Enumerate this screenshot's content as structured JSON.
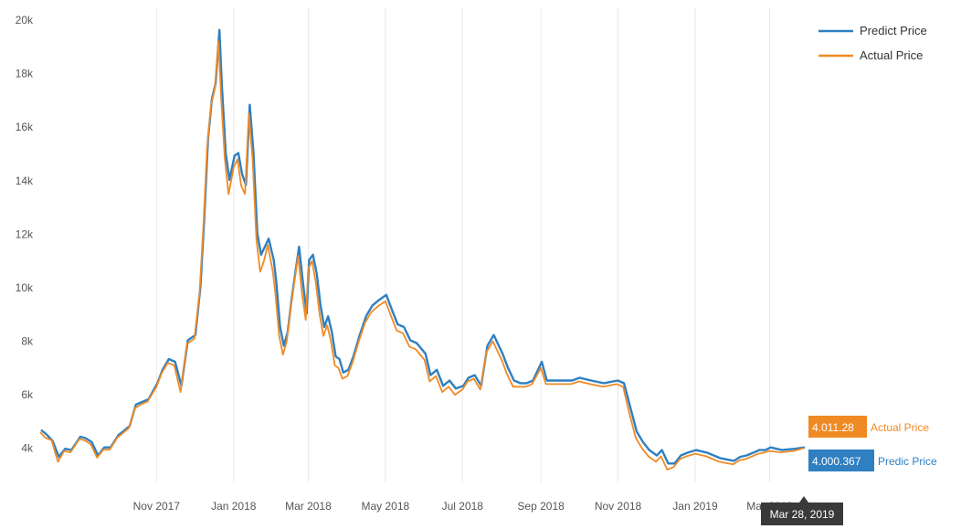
{
  "chart_data": {
    "type": "line",
    "x_type": "date",
    "ylim": [
      3000,
      20000
    ],
    "y_ticks": [
      4000,
      6000,
      8000,
      10000,
      12000,
      14000,
      16000,
      18000,
      20000
    ],
    "y_tick_labels": [
      "4k",
      "6k",
      "8k",
      "10k",
      "12k",
      "14k",
      "16k",
      "18k",
      "20k"
    ],
    "x_range": [
      "2017-08-01",
      "2019-03-28"
    ],
    "x_ticks": [
      "2017-11-01",
      "2018-01-01",
      "2018-03-01",
      "2018-05-01",
      "2018-07-01",
      "2018-09-01",
      "2018-11-01",
      "2019-01-01",
      "2019-03-01"
    ],
    "x_tick_labels": [
      "Nov 2017",
      "Jan 2018",
      "Mar 2018",
      "May 2018",
      "Jul 2018",
      "Sep 2018",
      "Nov 2018",
      "Jan 2019",
      "Mar 2019"
    ],
    "grid": "vertical",
    "legend_position": "top-right",
    "series": [
      {
        "name": "Predict Price",
        "color": "#2f7fc1",
        "x": [
          "2017-08-01",
          "2017-08-05",
          "2017-08-10",
          "2017-08-15",
          "2017-08-20",
          "2017-08-25",
          "2017-09-01",
          "2017-09-05",
          "2017-09-10",
          "2017-09-15",
          "2017-09-20",
          "2017-09-25",
          "2017-10-01",
          "2017-10-05",
          "2017-10-10",
          "2017-10-15",
          "2017-10-20",
          "2017-10-25",
          "2017-11-01",
          "2017-11-05",
          "2017-11-10",
          "2017-11-15",
          "2017-11-20",
          "2017-11-25",
          "2017-12-01",
          "2017-12-05",
          "2017-12-08",
          "2017-12-11",
          "2017-12-14",
          "2017-12-17",
          "2017-12-20",
          "2017-12-22",
          "2017-12-25",
          "2017-12-28",
          "2018-01-01",
          "2018-01-04",
          "2018-01-07",
          "2018-01-10",
          "2018-01-13",
          "2018-01-16",
          "2018-01-19",
          "2018-01-22",
          "2018-01-25",
          "2018-01-28",
          "2018-02-01",
          "2018-02-03",
          "2018-02-06",
          "2018-02-09",
          "2018-02-12",
          "2018-02-15",
          "2018-02-18",
          "2018-02-21",
          "2018-02-24",
          "2018-02-27",
          "2018-03-01",
          "2018-03-04",
          "2018-03-07",
          "2018-03-10",
          "2018-03-13",
          "2018-03-16",
          "2018-03-19",
          "2018-03-22",
          "2018-03-25",
          "2018-03-28",
          "2018-04-01",
          "2018-04-05",
          "2018-04-10",
          "2018-04-15",
          "2018-04-20",
          "2018-04-25",
          "2018-05-01",
          "2018-05-05",
          "2018-05-10",
          "2018-05-15",
          "2018-05-20",
          "2018-05-25",
          "2018-06-01",
          "2018-06-05",
          "2018-06-10",
          "2018-06-15",
          "2018-06-20",
          "2018-06-25",
          "2018-07-01",
          "2018-07-05",
          "2018-07-10",
          "2018-07-15",
          "2018-07-20",
          "2018-07-25",
          "2018-08-01",
          "2018-08-05",
          "2018-08-10",
          "2018-08-15",
          "2018-08-20",
          "2018-08-25",
          "2018-09-01",
          "2018-09-05",
          "2018-09-10",
          "2018-09-15",
          "2018-09-20",
          "2018-09-25",
          "2018-10-01",
          "2018-10-10",
          "2018-10-20",
          "2018-10-31",
          "2018-11-05",
          "2018-11-10",
          "2018-11-15",
          "2018-11-20",
          "2018-11-25",
          "2018-12-01",
          "2018-12-05",
          "2018-12-10",
          "2018-12-15",
          "2018-12-20",
          "2018-12-25",
          "2019-01-01",
          "2019-01-10",
          "2019-01-20",
          "2019-01-31",
          "2019-02-05",
          "2019-02-10",
          "2019-02-15",
          "2019-02-20",
          "2019-02-25",
          "2019-03-01",
          "2019-03-10",
          "2019-03-20",
          "2019-03-28"
        ],
        "values": [
          4650,
          4500,
          4250,
          3650,
          3950,
          3900,
          4400,
          4350,
          4200,
          3700,
          4000,
          4000,
          4450,
          4600,
          4800,
          5600,
          5700,
          5800,
          6400,
          6900,
          7300,
          7200,
          6300,
          8000,
          8200,
          10000,
          12500,
          15500,
          17000,
          17600,
          19600,
          17500,
          15000,
          14000,
          14900,
          15000,
          14200,
          13800,
          16800,
          15000,
          12000,
          11200,
          11500,
          11800,
          11000,
          10200,
          8500,
          7800,
          8300,
          9500,
          10500,
          11500,
          10200,
          9000,
          11000,
          11200,
          10500,
          9300,
          8500,
          8900,
          8300,
          7400,
          7300,
          6800,
          6900,
          7400,
          8200,
          8900,
          9300,
          9500,
          9700,
          9200,
          8600,
          8500,
          8000,
          7900,
          7500,
          6700,
          6900,
          6300,
          6500,
          6200,
          6300,
          6600,
          6700,
          6300,
          7800,
          8200,
          7500,
          7000,
          6500,
          6400,
          6400,
          6500,
          7200,
          6500,
          6500,
          6500,
          6500,
          6500,
          6600,
          6500,
          6400,
          6500,
          6400,
          5500,
          4600,
          4200,
          3900,
          3700,
          3900,
          3400,
          3400,
          3700,
          3800,
          3900,
          3800,
          3600,
          3500,
          3650,
          3700,
          3800,
          3900,
          3900,
          4000,
          3900,
          3950,
          4000
        ]
      },
      {
        "name": "Actual Price",
        "color": "#f08a24",
        "x": [
          "2017-08-01",
          "2017-08-05",
          "2017-08-10",
          "2017-08-15",
          "2017-08-20",
          "2017-08-25",
          "2017-09-01",
          "2017-09-05",
          "2017-09-10",
          "2017-09-15",
          "2017-09-20",
          "2017-09-25",
          "2017-10-01",
          "2017-10-05",
          "2017-10-10",
          "2017-10-15",
          "2017-10-20",
          "2017-10-25",
          "2017-11-01",
          "2017-11-05",
          "2017-11-10",
          "2017-11-15",
          "2017-11-20",
          "2017-11-25",
          "2017-12-01",
          "2017-12-05",
          "2017-12-08",
          "2017-12-11",
          "2017-12-14",
          "2017-12-17",
          "2017-12-20",
          "2017-12-22",
          "2017-12-25",
          "2017-12-28",
          "2018-01-01",
          "2018-01-04",
          "2018-01-07",
          "2018-01-10",
          "2018-01-13",
          "2018-01-16",
          "2018-01-19",
          "2018-01-22",
          "2018-01-25",
          "2018-01-28",
          "2018-02-01",
          "2018-02-03",
          "2018-02-06",
          "2018-02-09",
          "2018-02-12",
          "2018-02-15",
          "2018-02-18",
          "2018-02-21",
          "2018-02-24",
          "2018-02-27",
          "2018-03-01",
          "2018-03-04",
          "2018-03-07",
          "2018-03-10",
          "2018-03-13",
          "2018-03-16",
          "2018-03-19",
          "2018-03-22",
          "2018-03-25",
          "2018-03-28",
          "2018-04-01",
          "2018-04-05",
          "2018-04-10",
          "2018-04-15",
          "2018-04-20",
          "2018-04-25",
          "2018-05-01",
          "2018-05-05",
          "2018-05-10",
          "2018-05-15",
          "2018-05-20",
          "2018-05-25",
          "2018-06-01",
          "2018-06-05",
          "2018-06-10",
          "2018-06-15",
          "2018-06-20",
          "2018-06-25",
          "2018-07-01",
          "2018-07-05",
          "2018-07-10",
          "2018-07-15",
          "2018-07-20",
          "2018-07-25",
          "2018-08-01",
          "2018-08-05",
          "2018-08-10",
          "2018-08-15",
          "2018-08-20",
          "2018-08-25",
          "2018-09-01",
          "2018-09-05",
          "2018-09-10",
          "2018-09-15",
          "2018-09-20",
          "2018-09-25",
          "2018-10-01",
          "2018-10-10",
          "2018-10-20",
          "2018-10-31",
          "2018-11-05",
          "2018-11-10",
          "2018-11-15",
          "2018-11-20",
          "2018-11-25",
          "2018-12-01",
          "2018-12-05",
          "2018-12-10",
          "2018-12-15",
          "2018-12-20",
          "2018-12-25",
          "2019-01-01",
          "2019-01-10",
          "2019-01-20",
          "2019-01-31",
          "2019-02-05",
          "2019-02-10",
          "2019-02-15",
          "2019-02-20",
          "2019-02-25",
          "2019-03-01",
          "2019-03-10",
          "2019-03-20",
          "2019-03-28"
        ],
        "values": [
          4600,
          4400,
          4300,
          3500,
          3900,
          3850,
          4350,
          4300,
          4150,
          3650,
          3950,
          3950,
          4400,
          4550,
          4750,
          5500,
          5650,
          5750,
          6300,
          6800,
          7200,
          7100,
          6100,
          7900,
          8100,
          9800,
          12200,
          15200,
          16800,
          17400,
          19200,
          17200,
          14800,
          13500,
          14500,
          14800,
          13800,
          13500,
          16500,
          14800,
          11800,
          10600,
          11000,
          11600,
          10600,
          9800,
          8200,
          7500,
          8000,
          9200,
          10200,
          11200,
          9800,
          8800,
          10700,
          11000,
          10200,
          9000,
          8200,
          8600,
          8000,
          7100,
          7000,
          6600,
          6700,
          7200,
          8000,
          8700,
          9100,
          9300,
          9500,
          9000,
          8400,
          8300,
          7800,
          7700,
          7300,
          6500,
          6700,
          6100,
          6300,
          6000,
          6200,
          6500,
          6600,
          6200,
          7600,
          8000,
          7300,
          6800,
          6300,
          6300,
          6300,
          6400,
          7000,
          6400,
          6400,
          6400,
          6400,
          6400,
          6500,
          6400,
          6300,
          6400,
          6300,
          5300,
          4400,
          4000,
          3700,
          3500,
          3700,
          3200,
          3300,
          3600,
          3700,
          3800,
          3700,
          3500,
          3400,
          3550,
          3600,
          3700,
          3800,
          3850,
          3900,
          3850,
          3900,
          4011
        ]
      }
    ],
    "end_labels": [
      {
        "value_text": "4.011.28",
        "label": "Actual Price",
        "color": "#f08a24"
      },
      {
        "value_text": "4.000.367",
        "label": "Predic Price",
        "color": "#2f7fc1"
      }
    ],
    "crosshair_date_text": "Mar 28, 2019"
  }
}
